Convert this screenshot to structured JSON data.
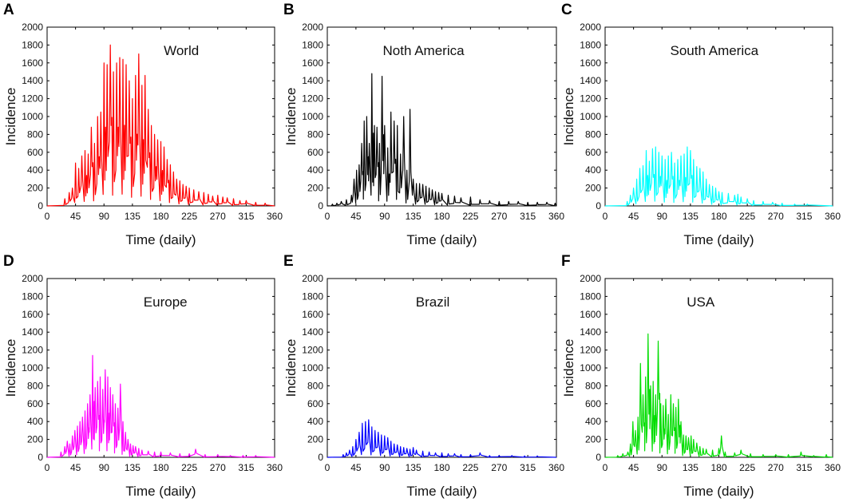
{
  "chart_data": [
    {
      "type": "line",
      "panel": "A",
      "title": "World",
      "color": "#ff0000",
      "xlabel": "Time (daily)",
      "ylabel": "Incidence",
      "xlim": [
        0,
        360
      ],
      "ylim": [
        0,
        2000
      ],
      "xticks": [
        0,
        45,
        90,
        135,
        180,
        225,
        270,
        315,
        360
      ],
      "yticks": [
        0,
        200,
        400,
        600,
        800,
        1000,
        1200,
        1400,
        1600,
        1800,
        2000
      ],
      "peaks": [
        [
          28,
          80
        ],
        [
          35,
          150
        ],
        [
          40,
          200
        ],
        [
          45,
          480
        ],
        [
          50,
          420
        ],
        [
          55,
          560
        ],
        [
          60,
          620
        ],
        [
          65,
          580
        ],
        [
          70,
          880
        ],
        [
          75,
          700
        ],
        [
          80,
          1000
        ],
        [
          85,
          1050
        ],
        [
          90,
          1600
        ],
        [
          95,
          1580
        ],
        [
          100,
          1800
        ],
        [
          105,
          1500
        ],
        [
          110,
          1600
        ],
        [
          115,
          1660
        ],
        [
          120,
          1640
        ],
        [
          125,
          1580
        ],
        [
          130,
          1400
        ],
        [
          135,
          1200
        ],
        [
          140,
          1460
        ],
        [
          145,
          1700
        ],
        [
          150,
          1350
        ],
        [
          155,
          1460
        ],
        [
          160,
          1080
        ],
        [
          165,
          900
        ],
        [
          170,
          800
        ],
        [
          175,
          740
        ],
        [
          180,
          720
        ],
        [
          185,
          660
        ],
        [
          190,
          520
        ],
        [
          195,
          460
        ],
        [
          200,
          380
        ],
        [
          205,
          300
        ],
        [
          210,
          280
        ],
        [
          215,
          240
        ],
        [
          220,
          220
        ],
        [
          225,
          200
        ],
        [
          232,
          180
        ],
        [
          240,
          160
        ],
        [
          248,
          150
        ],
        [
          255,
          130
        ],
        [
          262,
          110
        ],
        [
          270,
          120
        ],
        [
          278,
          100
        ],
        [
          285,
          90
        ],
        [
          295,
          80
        ],
        [
          305,
          60
        ],
        [
          315,
          60
        ],
        [
          330,
          40
        ],
        [
          345,
          30
        ]
      ]
    },
    {
      "type": "line",
      "panel": "B",
      "title": "Noth America",
      "color": "#000000",
      "xlabel": "Time (daily)",
      "ylabel": "Incidence",
      "xlim": [
        0,
        360
      ],
      "ylim": [
        0,
        2000
      ],
      "xticks": [
        0,
        45,
        90,
        135,
        180,
        225,
        270,
        315,
        360
      ],
      "yticks": [
        0,
        200,
        400,
        600,
        800,
        1000,
        1200,
        1400,
        1600,
        1800,
        2000
      ],
      "peaks": [
        [
          8,
          20
        ],
        [
          15,
          30
        ],
        [
          22,
          50
        ],
        [
          30,
          70
        ],
        [
          38,
          120
        ],
        [
          42,
          300
        ],
        [
          46,
          400
        ],
        [
          50,
          460
        ],
        [
          54,
          700
        ],
        [
          58,
          950
        ],
        [
          62,
          1000
        ],
        [
          66,
          700
        ],
        [
          70,
          1480
        ],
        [
          74,
          900
        ],
        [
          78,
          880
        ],
        [
          82,
          700
        ],
        [
          86,
          1450
        ],
        [
          90,
          900
        ],
        [
          95,
          650
        ],
        [
          100,
          1050
        ],
        [
          105,
          950
        ],
        [
          110,
          900
        ],
        [
          115,
          580
        ],
        [
          120,
          1000
        ],
        [
          125,
          400
        ],
        [
          130,
          1080
        ],
        [
          135,
          300
        ],
        [
          140,
          250
        ],
        [
          145,
          250
        ],
        [
          150,
          240
        ],
        [
          155,
          220
        ],
        [
          160,
          200
        ],
        [
          165,
          180
        ],
        [
          170,
          160
        ],
        [
          175,
          150
        ],
        [
          180,
          140
        ],
        [
          190,
          120
        ],
        [
          200,
          110
        ],
        [
          210,
          90
        ],
        [
          225,
          100
        ],
        [
          240,
          70
        ],
        [
          255,
          60
        ],
        [
          270,
          50
        ],
        [
          285,
          50
        ],
        [
          300,
          50
        ],
        [
          315,
          40
        ],
        [
          330,
          40
        ],
        [
          345,
          40
        ],
        [
          358,
          30
        ]
      ]
    },
    {
      "type": "line",
      "panel": "C",
      "title": "South America",
      "color": "#00ffff",
      "xlabel": "Time (daily)",
      "ylabel": "Incidence",
      "xlim": [
        0,
        360
      ],
      "ylim": [
        0,
        2000
      ],
      "xticks": [
        0,
        45,
        90,
        135,
        180,
        225,
        270,
        315,
        360
      ],
      "yticks": [
        0,
        200,
        400,
        600,
        800,
        1000,
        1200,
        1400,
        1600,
        1800,
        2000
      ],
      "peaks": [
        [
          35,
          50
        ],
        [
          40,
          120
        ],
        [
          45,
          200
        ],
        [
          50,
          300
        ],
        [
          55,
          420
        ],
        [
          60,
          450
        ],
        [
          65,
          620
        ],
        [
          70,
          500
        ],
        [
          75,
          640
        ],
        [
          80,
          660
        ],
        [
          85,
          600
        ],
        [
          90,
          560
        ],
        [
          95,
          520
        ],
        [
          100,
          560
        ],
        [
          105,
          600
        ],
        [
          110,
          480
        ],
        [
          115,
          520
        ],
        [
          120,
          560
        ],
        [
          125,
          580
        ],
        [
          130,
          660
        ],
        [
          135,
          620
        ],
        [
          140,
          520
        ],
        [
          145,
          440
        ],
        [
          150,
          420
        ],
        [
          155,
          380
        ],
        [
          160,
          300
        ],
        [
          165,
          240
        ],
        [
          170,
          220
        ],
        [
          175,
          200
        ],
        [
          180,
          160
        ],
        [
          185,
          150
        ],
        [
          195,
          140
        ],
        [
          205,
          120
        ],
        [
          210,
          130
        ],
        [
          215,
          100
        ],
        [
          225,
          80
        ],
        [
          235,
          60
        ],
        [
          250,
          50
        ],
        [
          265,
          40
        ],
        [
          280,
          30
        ],
        [
          300,
          20
        ],
        [
          320,
          20
        ]
      ]
    },
    {
      "type": "line",
      "panel": "D",
      "title": "Europe",
      "color": "#ff00ff",
      "xlabel": "Time (daily)",
      "ylabel": "Incidence",
      "xlim": [
        0,
        360
      ],
      "ylim": [
        0,
        2000
      ],
      "xticks": [
        0,
        45,
        90,
        135,
        180,
        225,
        270,
        315,
        360
      ],
      "yticks": [
        0,
        200,
        400,
        600,
        800,
        1000,
        1200,
        1400,
        1600,
        1800,
        2000
      ],
      "peaks": [
        [
          22,
          60
        ],
        [
          28,
          120
        ],
        [
          32,
          180
        ],
        [
          36,
          150
        ],
        [
          40,
          240
        ],
        [
          44,
          300
        ],
        [
          48,
          350
        ],
        [
          52,
          400
        ],
        [
          56,
          450
        ],
        [
          60,
          520
        ],
        [
          64,
          600
        ],
        [
          68,
          700
        ],
        [
          72,
          1140
        ],
        [
          76,
          780
        ],
        [
          80,
          850
        ],
        [
          84,
          900
        ],
        [
          88,
          760
        ],
        [
          92,
          980
        ],
        [
          96,
          900
        ],
        [
          100,
          780
        ],
        [
          104,
          700
        ],
        [
          108,
          600
        ],
        [
          112,
          550
        ],
        [
          116,
          820
        ],
        [
          120,
          400
        ],
        [
          124,
          280
        ],
        [
          128,
          200
        ],
        [
          132,
          150
        ],
        [
          136,
          130
        ],
        [
          140,
          120
        ],
        [
          145,
          100
        ],
        [
          150,
          80
        ],
        [
          160,
          70
        ],
        [
          170,
          60
        ],
        [
          180,
          60
        ],
        [
          195,
          50
        ],
        [
          210,
          40
        ],
        [
          225,
          40
        ],
        [
          235,
          90
        ],
        [
          250,
          30
        ],
        [
          270,
          30
        ],
        [
          290,
          20
        ],
        [
          310,
          20
        ],
        [
          330,
          20
        ]
      ]
    },
    {
      "type": "line",
      "panel": "E",
      "title": "Brazil",
      "color": "#0000ff",
      "xlabel": "Time (daily)",
      "ylabel": "Incidence",
      "xlim": [
        0,
        360
      ],
      "ylim": [
        0,
        2000
      ],
      "xticks": [
        0,
        45,
        90,
        135,
        180,
        225,
        270,
        315,
        360
      ],
      "yticks": [
        0,
        200,
        400,
        600,
        800,
        1000,
        1200,
        1400,
        1600,
        1800,
        2000
      ],
      "peaks": [
        [
          25,
          30
        ],
        [
          30,
          50
        ],
        [
          35,
          80
        ],
        [
          40,
          120
        ],
        [
          45,
          200
        ],
        [
          50,
          280
        ],
        [
          55,
          380
        ],
        [
          60,
          400
        ],
        [
          65,
          420
        ],
        [
          70,
          340
        ],
        [
          75,
          300
        ],
        [
          80,
          280
        ],
        [
          85,
          250
        ],
        [
          90,
          240
        ],
        [
          95,
          220
        ],
        [
          100,
          180
        ],
        [
          105,
          150
        ],
        [
          110,
          140
        ],
        [
          115,
          120
        ],
        [
          120,
          110
        ],
        [
          125,
          100
        ],
        [
          130,
          90
        ],
        [
          135,
          110
        ],
        [
          140,
          80
        ],
        [
          150,
          70
        ],
        [
          160,
          60
        ],
        [
          170,
          50
        ],
        [
          180,
          50
        ],
        [
          190,
          40
        ],
        [
          200,
          40
        ],
        [
          210,
          30
        ],
        [
          225,
          30
        ],
        [
          240,
          50
        ],
        [
          255,
          20
        ],
        [
          270,
          20
        ],
        [
          290,
          20
        ],
        [
          310,
          15
        ],
        [
          330,
          15
        ]
      ]
    },
    {
      "type": "line",
      "panel": "F",
      "title": "USA",
      "color": "#00dd00",
      "xlabel": "Time (daily)",
      "ylabel": "Incidence",
      "xlim": [
        0,
        360
      ],
      "ylim": [
        0,
        2000
      ],
      "xticks": [
        0,
        45,
        90,
        135,
        180,
        225,
        270,
        315,
        360
      ],
      "yticks": [
        0,
        200,
        400,
        600,
        800,
        1000,
        1200,
        1400,
        1600,
        1800,
        2000
      ],
      "peaks": [
        [
          20,
          20
        ],
        [
          28,
          40
        ],
        [
          36,
          60
        ],
        [
          40,
          150
        ],
        [
          44,
          400
        ],
        [
          48,
          300
        ],
        [
          52,
          450
        ],
        [
          56,
          1050
        ],
        [
          60,
          700
        ],
        [
          64,
          900
        ],
        [
          68,
          1380
        ],
        [
          72,
          800
        ],
        [
          76,
          850
        ],
        [
          80,
          700
        ],
        [
          84,
          1300
        ],
        [
          88,
          600
        ],
        [
          92,
          580
        ],
        [
          96,
          650
        ],
        [
          100,
          480
        ],
        [
          104,
          700
        ],
        [
          108,
          600
        ],
        [
          112,
          560
        ],
        [
          116,
          650
        ],
        [
          120,
          400
        ],
        [
          124,
          250
        ],
        [
          128,
          240
        ],
        [
          132,
          220
        ],
        [
          136,
          240
        ],
        [
          140,
          200
        ],
        [
          145,
          160
        ],
        [
          150,
          120
        ],
        [
          155,
          100
        ],
        [
          160,
          90
        ],
        [
          170,
          80
        ],
        [
          180,
          100
        ],
        [
          184,
          240
        ],
        [
          190,
          60
        ],
        [
          205,
          50
        ],
        [
          215,
          80
        ],
        [
          230,
          40
        ],
        [
          250,
          30
        ],
        [
          270,
          30
        ],
        [
          290,
          30
        ],
        [
          310,
          60
        ],
        [
          330,
          20
        ],
        [
          350,
          30
        ]
      ]
    }
  ]
}
